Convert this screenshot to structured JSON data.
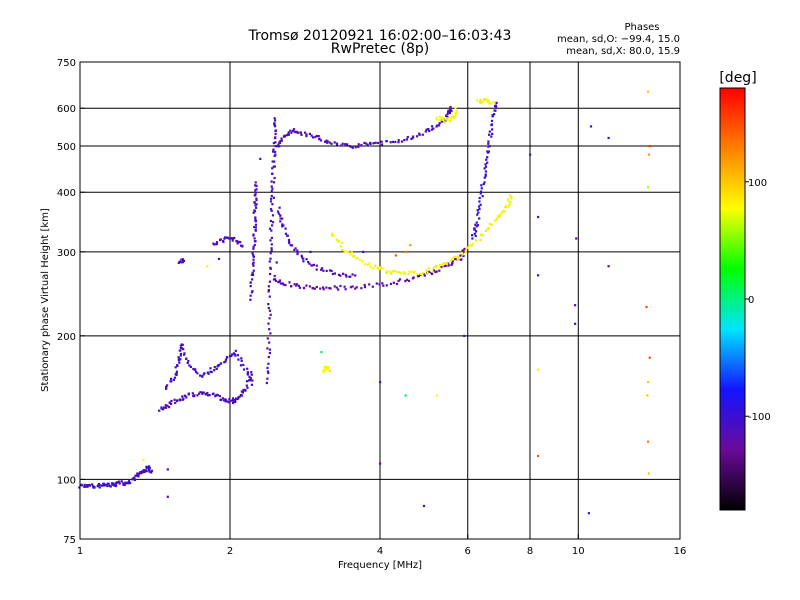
{
  "chart_data": {
    "type": "scatter",
    "title": "Tromsø 20120921 16:02:00–16:03:43",
    "subtitle": "RwPretec (8p)",
    "xlabel": "Frequency [MHz]",
    "ylabel": "Stationary phase Virtual Height [km]",
    "xscale": "log",
    "yscale": "log",
    "xlim": [
      1,
      16
    ],
    "ylim": [
      75,
      750
    ],
    "xticks": [
      1,
      2,
      4,
      6,
      8,
      10,
      16
    ],
    "yticks": [
      75,
      100,
      200,
      300,
      400,
      500,
      600,
      750
    ],
    "grid": true,
    "phase_stats": {
      "heading": "Phases",
      "o_line": "mean, sd,O: −99.4, 15.0",
      "x_line": "mean, sd,X:  80.0, 15.9"
    },
    "colorbar": {
      "label": "[deg]",
      "range": [
        -180,
        180
      ],
      "ticks": [
        100,
        0,
        -100
      ],
      "colors": [
        "#000000",
        "#6a0a9a",
        "#1414ff",
        "#00e5ff",
        "#00ff00",
        "#ffff00",
        "#ff8000",
        "#ff0000"
      ]
    },
    "traces": [
      {
        "name": "",
        "points": [
          [
            1.0,
            97
          ],
          [
            1.04,
            97
          ],
          [
            1.08,
            97
          ],
          [
            1.12,
            97.5
          ],
          [
            1.16,
            97.5
          ],
          [
            1.2,
            98
          ],
          [
            1.24,
            98.5
          ],
          [
            1.28,
            100
          ],
          [
            1.31,
            102
          ],
          [
            1.34,
            104
          ],
          [
            1.37,
            106
          ],
          [
            1.4,
            103
          ]
        ],
        "phase": -105
      },
      {
        "name": "",
        "points": [
          [
            1.45,
            140
          ],
          [
            1.5,
            143
          ],
          [
            1.58,
            147
          ],
          [
            1.65,
            150
          ],
          [
            1.75,
            152
          ],
          [
            1.85,
            151
          ],
          [
            1.95,
            147
          ],
          [
            2.02,
            146
          ],
          [
            2.08,
            148
          ],
          [
            2.15,
            155
          ],
          [
            2.22,
            168
          ]
        ],
        "phase": -110
      },
      {
        "name": "",
        "points": [
          [
            1.48,
            155
          ],
          [
            1.55,
            165
          ],
          [
            1.58,
            178
          ],
          [
            1.6,
            192
          ],
          [
            1.65,
            175
          ],
          [
            1.75,
            165
          ],
          [
            1.85,
            170
          ],
          [
            1.95,
            178
          ],
          [
            2.05,
            185
          ],
          [
            2.15,
            170
          ],
          [
            2.22,
            158
          ]
        ],
        "phase": -105
      },
      {
        "name": "",
        "points": [
          [
            1.58,
            285
          ],
          [
            1.62,
            290
          ]
        ],
        "phase": -110
      },
      {
        "name": "",
        "points": [
          [
            1.85,
            310
          ],
          [
            1.95,
            320
          ],
          [
            2.05,
            318
          ],
          [
            2.12,
            308
          ]
        ],
        "phase": -108
      },
      {
        "name": "",
        "points": [
          [
            2.2,
            240
          ],
          [
            2.22,
            270
          ],
          [
            2.23,
            300
          ],
          [
            2.24,
            330
          ],
          [
            2.24,
            360
          ],
          [
            2.25,
            390
          ],
          [
            2.26,
            420
          ]
        ],
        "phase": -110
      },
      {
        "name": "",
        "points": [
          [
            2.38,
            160
          ],
          [
            2.39,
            190
          ],
          [
            2.4,
            230
          ],
          [
            2.41,
            280
          ],
          [
            2.42,
            330
          ],
          [
            2.43,
            380
          ],
          [
            2.44,
            430
          ],
          [
            2.45,
            480
          ],
          [
            2.46,
            530
          ],
          [
            2.47,
            580
          ]
        ],
        "phase": -108
      },
      {
        "name": "",
        "points": [
          [
            2.5,
            500
          ],
          [
            2.55,
            520
          ],
          [
            2.65,
            540
          ],
          [
            2.8,
            530
          ],
          [
            3.0,
            520
          ],
          [
            3.2,
            505
          ],
          [
            3.5,
            500
          ],
          [
            3.8,
            505
          ],
          [
            4.2,
            510
          ],
          [
            4.6,
            520
          ],
          [
            5.0,
            540
          ],
          [
            5.3,
            560
          ],
          [
            5.5,
            585
          ],
          [
            5.55,
            600
          ]
        ],
        "phase": -110
      },
      {
        "name": "",
        "points": [
          [
            2.5,
            370
          ],
          [
            2.55,
            340
          ],
          [
            2.65,
            310
          ],
          [
            2.8,
            290
          ],
          [
            3.0,
            278
          ],
          [
            3.3,
            270
          ],
          [
            3.6,
            266
          ]
        ],
        "phase": -112
      },
      {
        "name": "",
        "points": [
          [
            2.45,
            265
          ],
          [
            2.55,
            258
          ],
          [
            2.75,
            254
          ],
          [
            3.0,
            252
          ],
          [
            3.3,
            252
          ],
          [
            3.7,
            254
          ],
          [
            4.2,
            258
          ],
          [
            4.7,
            264
          ],
          [
            5.1,
            272
          ],
          [
            5.5,
            282
          ],
          [
            5.8,
            292
          ],
          [
            5.95,
            305
          ]
        ],
        "phase": -120
      },
      {
        "name": "",
        "points": [
          [
            3.2,
            330
          ],
          [
            3.4,
            302
          ],
          [
            3.6,
            290
          ],
          [
            3.9,
            278
          ],
          [
            4.2,
            272
          ],
          [
            4.5,
            270
          ],
          [
            4.9,
            272
          ],
          [
            5.3,
            280
          ],
          [
            5.7,
            292
          ],
          [
            6.1,
            308
          ],
          [
            6.5,
            330
          ],
          [
            6.9,
            355
          ],
          [
            7.2,
            375
          ],
          [
            7.35,
            395
          ]
        ],
        "phase": 80
      },
      {
        "name": "",
        "points": [
          [
            5.2,
            575
          ],
          [
            5.4,
            565
          ],
          [
            5.6,
            570
          ],
          [
            5.7,
            600
          ]
        ],
        "phase": 75
      },
      {
        "name": "",
        "points": [
          [
            6.15,
            320
          ],
          [
            6.25,
            340
          ],
          [
            6.35,
            380
          ],
          [
            6.45,
            420
          ],
          [
            6.55,
            470
          ],
          [
            6.65,
            520
          ],
          [
            6.75,
            580
          ],
          [
            6.85,
            620
          ]
        ],
        "phase": -100
      },
      {
        "name": "",
        "points": [
          [
            6.3,
            620
          ],
          [
            6.5,
            625
          ],
          [
            6.8,
            615
          ]
        ],
        "phase": 80
      },
      {
        "name": "",
        "points": [
          [
            3.08,
            168
          ],
          [
            3.12,
            172
          ],
          [
            3.16,
            170
          ]
        ],
        "phase": 80
      }
    ],
    "scatter": [
      [
        2.48,
        285,
        -110
      ],
      [
        1.9,
        290,
        -105
      ],
      [
        2.9,
        300,
        -100
      ],
      [
        3.7,
        300,
        -95
      ],
      [
        4.3,
        295,
        145
      ],
      [
        4.5,
        300,
        130
      ],
      [
        4.6,
        310,
        120
      ],
      [
        1.8,
        280,
        80
      ],
      [
        1.34,
        110,
        80
      ],
      [
        1.5,
        105,
        -110
      ],
      [
        1.5,
        92,
        -110
      ],
      [
        2.3,
        470,
        -110
      ],
      [
        4.0,
        108,
        -120
      ],
      [
        4.9,
        88,
        -110
      ],
      [
        4.5,
        150,
        5
      ],
      [
        4.0,
        160,
        -100
      ],
      [
        5.9,
        200,
        -100
      ],
      [
        5.2,
        150,
        80
      ],
      [
        3.05,
        185,
        5
      ],
      [
        8.3,
        355,
        -110
      ],
      [
        8.3,
        268,
        -110
      ],
      [
        8.3,
        170,
        80
      ],
      [
        8.3,
        112,
        145
      ],
      [
        9.9,
        320,
        -110
      ],
      [
        9.85,
        232,
        -120
      ],
      [
        9.85,
        212,
        -110
      ],
      [
        10.6,
        550,
        -100
      ],
      [
        10.5,
        85,
        -100
      ],
      [
        11.5,
        520,
        -100
      ],
      [
        11.5,
        280,
        -110
      ],
      [
        13.8,
        650,
        100
      ],
      [
        13.9,
        500,
        160
      ],
      [
        13.85,
        480,
        120
      ],
      [
        13.8,
        410,
        60
      ],
      [
        13.7,
        230,
        150
      ],
      [
        13.9,
        180,
        150
      ],
      [
        13.8,
        160,
        100
      ],
      [
        13.75,
        150,
        100
      ],
      [
        13.8,
        120,
        130
      ],
      [
        13.85,
        103,
        100
      ],
      [
        8.0,
        480,
        -100
      ]
    ]
  }
}
